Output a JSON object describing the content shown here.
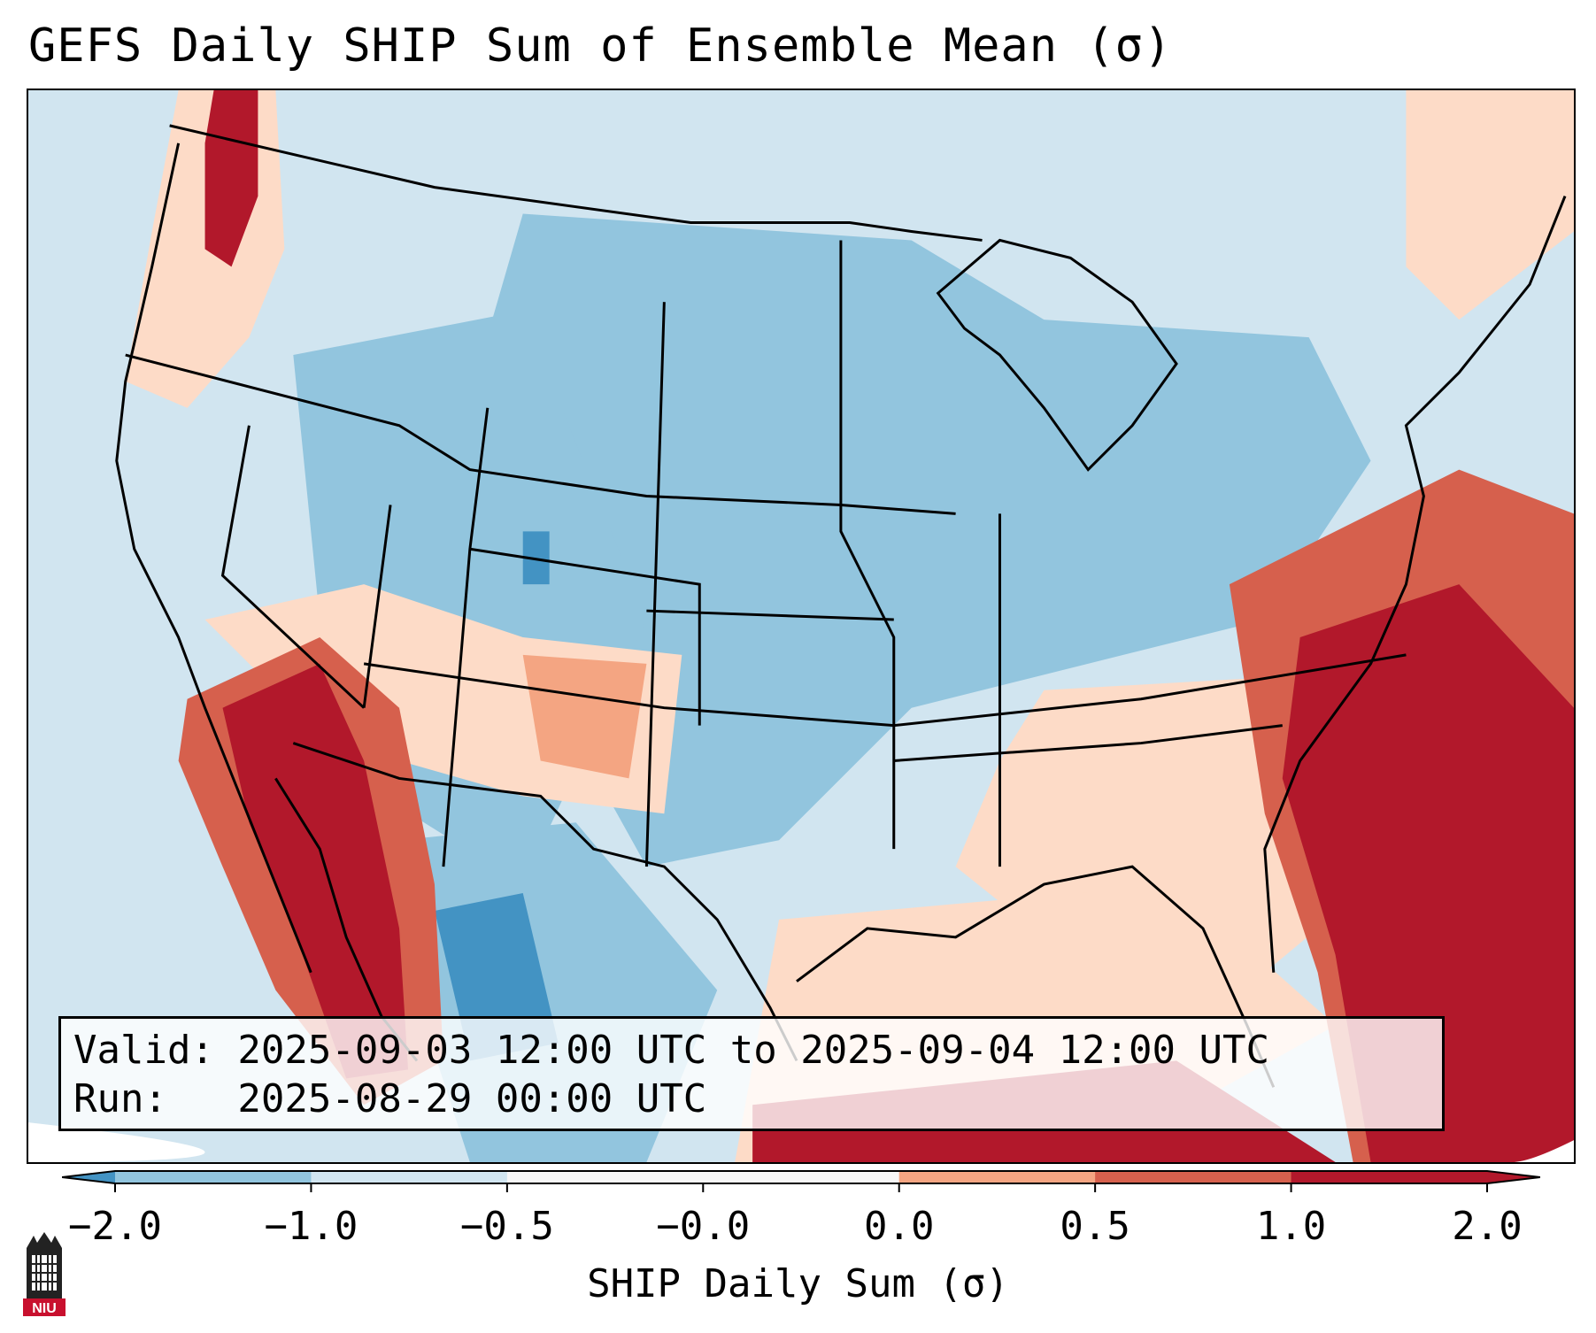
{
  "title": "GEFS Daily SHIP Sum of Ensemble Mean (σ)",
  "info": {
    "valid_line": "Valid: 2025-09-03 12:00 UTC to 2025-09-04 12:00 UTC",
    "run_line": "Run:   2025-08-29 00:00 UTC"
  },
  "colorbar": {
    "label": "SHIP Daily Sum (σ)",
    "ticks": [
      "−2.0",
      "−1.0",
      "−0.5",
      "−0.0",
      "0.0",
      "0.5",
      "1.0",
      "2.0"
    ],
    "colors": [
      "#4393c3",
      "#92c5de",
      "#d1e5f0",
      "#f7f7f7",
      "#fddbc7",
      "#f4a582",
      "#d6604d",
      "#b2182b"
    ],
    "extend": "both"
  },
  "logo": {
    "text": "NIU",
    "icon": "niu-tower-logo-icon"
  },
  "map": {
    "background_color": "#d1e5f0",
    "boundaries": "states, countries, coastlines"
  }
}
